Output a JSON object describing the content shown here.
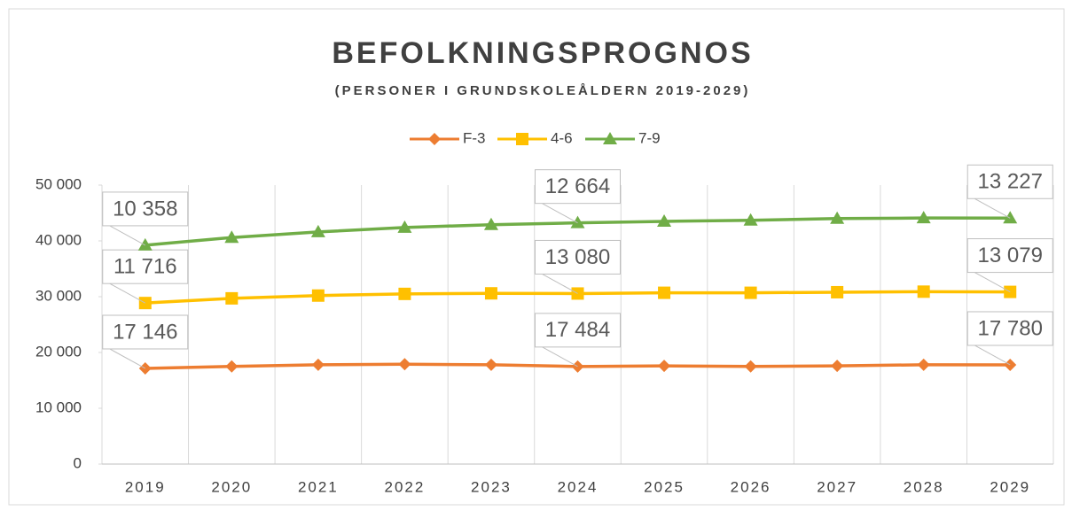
{
  "chart_data": {
    "type": "line",
    "stacked": true,
    "title": "BEFOLKNINGSPROGNOS",
    "subtitle": "(PERSONER I GRUNDSKOLEÅLDERN 2019-2029)",
    "categories": [
      "2019",
      "2020",
      "2021",
      "2022",
      "2023",
      "2024",
      "2025",
      "2026",
      "2027",
      "2028",
      "2029"
    ],
    "series": [
      {
        "name": "F-3",
        "color": "#ED7D31",
        "marker": "diamond",
        "values": [
          17146,
          17500,
          17800,
          17900,
          17800,
          17484,
          17600,
          17500,
          17600,
          17800,
          17780
        ],
        "value_labels": [
          "17 146",
          null,
          null,
          null,
          null,
          "17 484",
          null,
          null,
          null,
          null,
          "17 780"
        ]
      },
      {
        "name": "4-6",
        "color": "#FFC000",
        "marker": "square",
        "values": [
          11716,
          12200,
          12400,
          12600,
          12800,
          13080,
          13100,
          13200,
          13200,
          13100,
          13079
        ],
        "value_labels": [
          "11 716",
          null,
          null,
          null,
          null,
          "13 080",
          null,
          null,
          null,
          null,
          "13 079"
        ]
      },
      {
        "name": "7-9",
        "color": "#70AD47",
        "marker": "triangle",
        "values": [
          10358,
          10900,
          11400,
          11900,
          12300,
          12664,
          12800,
          13000,
          13200,
          13200,
          13227
        ],
        "value_labels": [
          "10 358",
          null,
          null,
          null,
          null,
          "12 664",
          null,
          null,
          null,
          null,
          "13 227"
        ]
      }
    ],
    "ylim": [
      0,
      50000
    ],
    "yticks": [
      0,
      {
        "value": 10000,
        "label": "10 000"
      },
      {
        "value": 20000,
        "label": "20 000"
      },
      {
        "value": 30000,
        "label": "30 000"
      },
      {
        "value": 40000,
        "label": "40 000"
      },
      {
        "value": 50000,
        "label": "50 000"
      }
    ],
    "legend": "top"
  }
}
